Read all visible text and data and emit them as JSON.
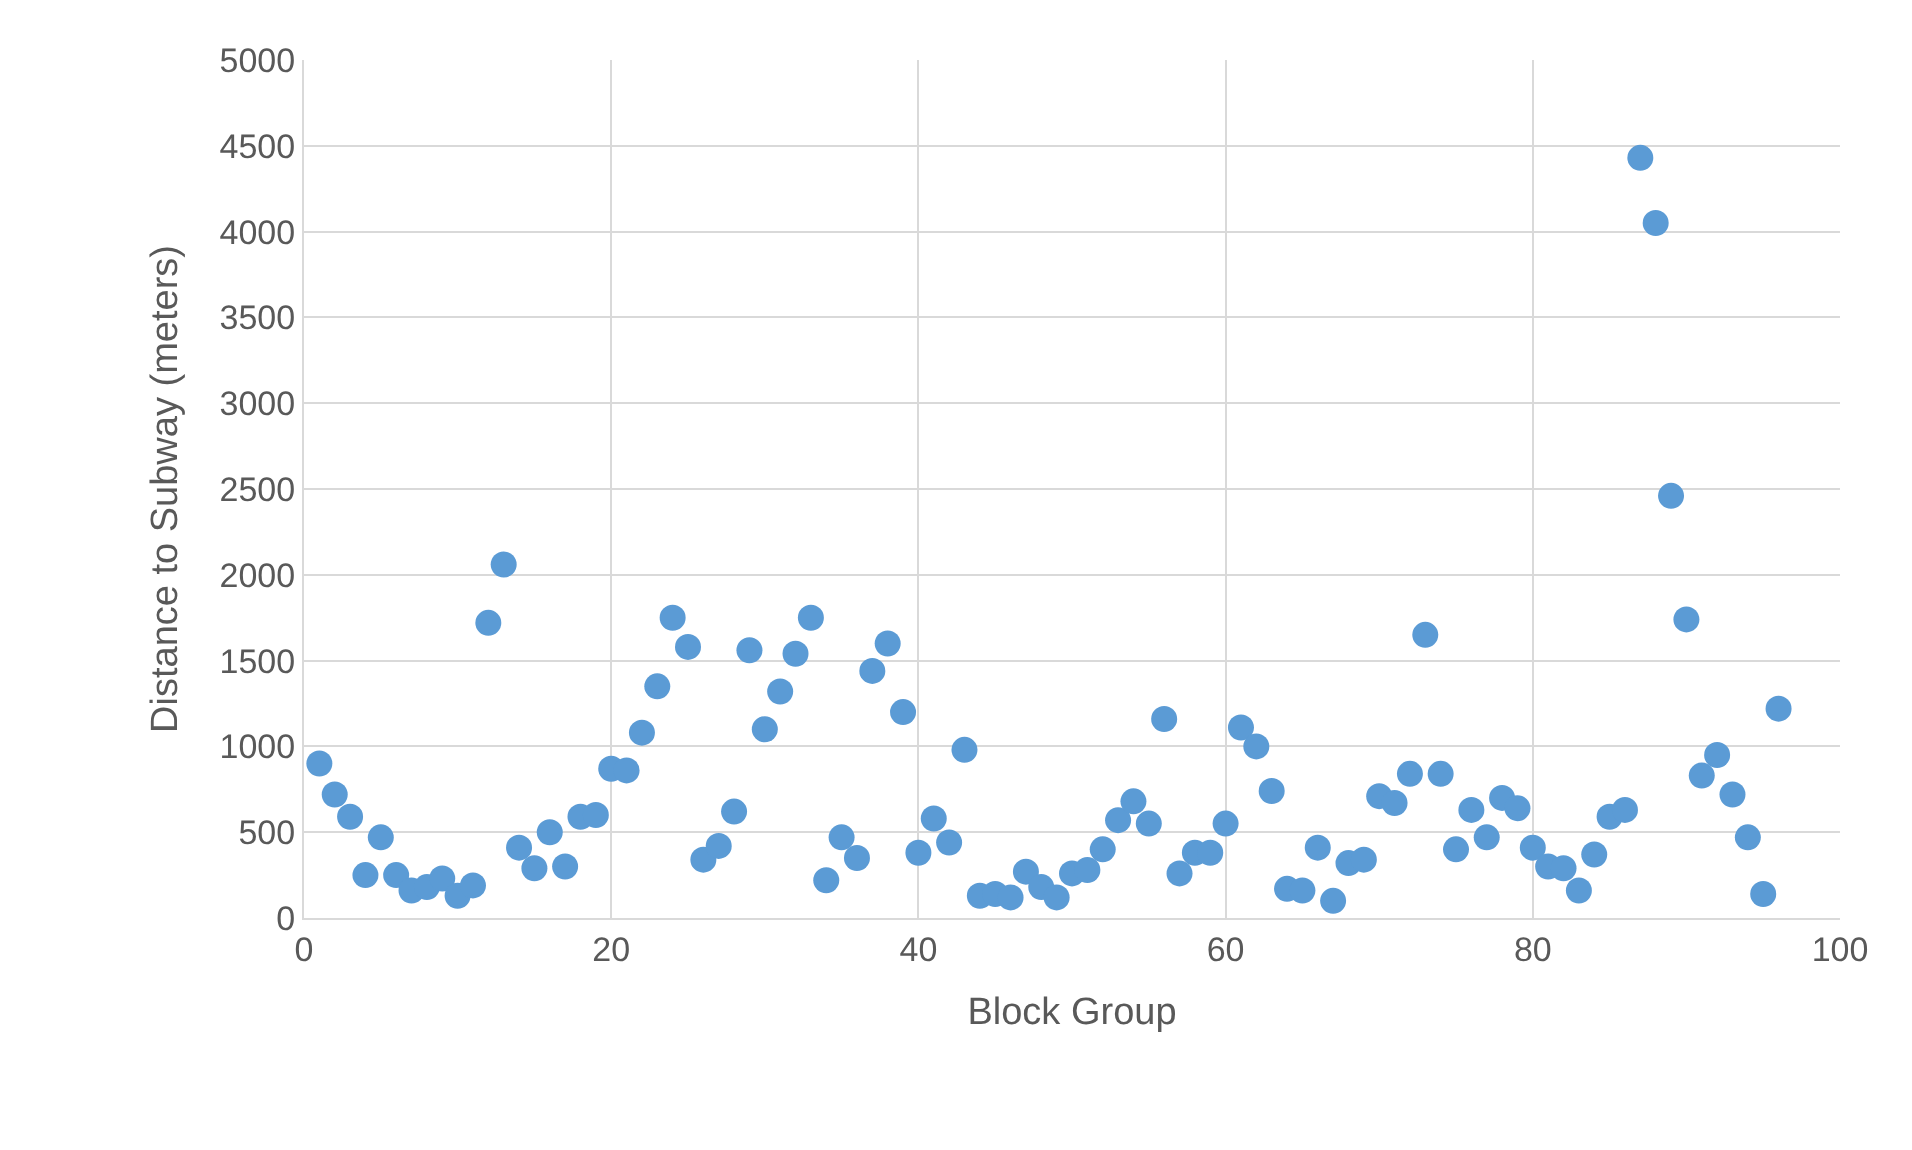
{
  "chart_data": {
    "type": "scatter",
    "xlabel": "Block Group",
    "ylabel": "Distance to Subway (meters)",
    "x": [
      1,
      2,
      3,
      4,
      5,
      6,
      7,
      8,
      9,
      10,
      11,
      12,
      13,
      14,
      15,
      16,
      17,
      18,
      19,
      20,
      21,
      22,
      23,
      24,
      25,
      26,
      27,
      28,
      29,
      30,
      31,
      32,
      33,
      34,
      35,
      36,
      37,
      38,
      39,
      40,
      41,
      42,
      43,
      44,
      45,
      46,
      47,
      48,
      49,
      50,
      51,
      52,
      53,
      54,
      55,
      56,
      57,
      58,
      59,
      60,
      61,
      62,
      63,
      64,
      65,
      66,
      67,
      68,
      69,
      70,
      71,
      72,
      73,
      74,
      75,
      76,
      77,
      78,
      79,
      80,
      81,
      82,
      83,
      84,
      85,
      86,
      87,
      88,
      89,
      90,
      91,
      92,
      93,
      94,
      95,
      96
    ],
    "series": [
      {
        "color": "#5b9bd5",
        "values": [
          900,
          720,
          590,
          250,
          470,
          250,
          160,
          180,
          230,
          130,
          190,
          1720,
          2060,
          410,
          290,
          500,
          300,
          590,
          600,
          870,
          860,
          1080,
          1350,
          1750,
          1580,
          340,
          420,
          620,
          1560,
          1100,
          1320,
          1540,
          1750,
          220,
          470,
          350,
          1440,
          1600,
          1200,
          380,
          580,
          440,
          980,
          130,
          140,
          120,
          270,
          180,
          120,
          260,
          280,
          400,
          570,
          680,
          550,
          1160,
          260,
          380,
          380,
          550,
          1110,
          1000,
          740,
          170,
          160,
          410,
          100,
          320,
          340,
          710,
          670,
          840,
          1650,
          840,
          400,
          630,
          470,
          700,
          640,
          410,
          300,
          290,
          160,
          370,
          590,
          630,
          4430,
          4050,
          2460,
          1740,
          830,
          950,
          720,
          470,
          140,
          1220
        ]
      }
    ],
    "xlim": [
      0,
      100
    ],
    "xticks": [
      0,
      20,
      40,
      60,
      80,
      100
    ],
    "ylim": [
      0,
      5000
    ],
    "yticks": [
      0,
      500,
      1000,
      1500,
      2000,
      2500,
      3000,
      3500,
      4000,
      4500,
      5000
    ],
    "grid": true,
    "marker": "circle"
  }
}
